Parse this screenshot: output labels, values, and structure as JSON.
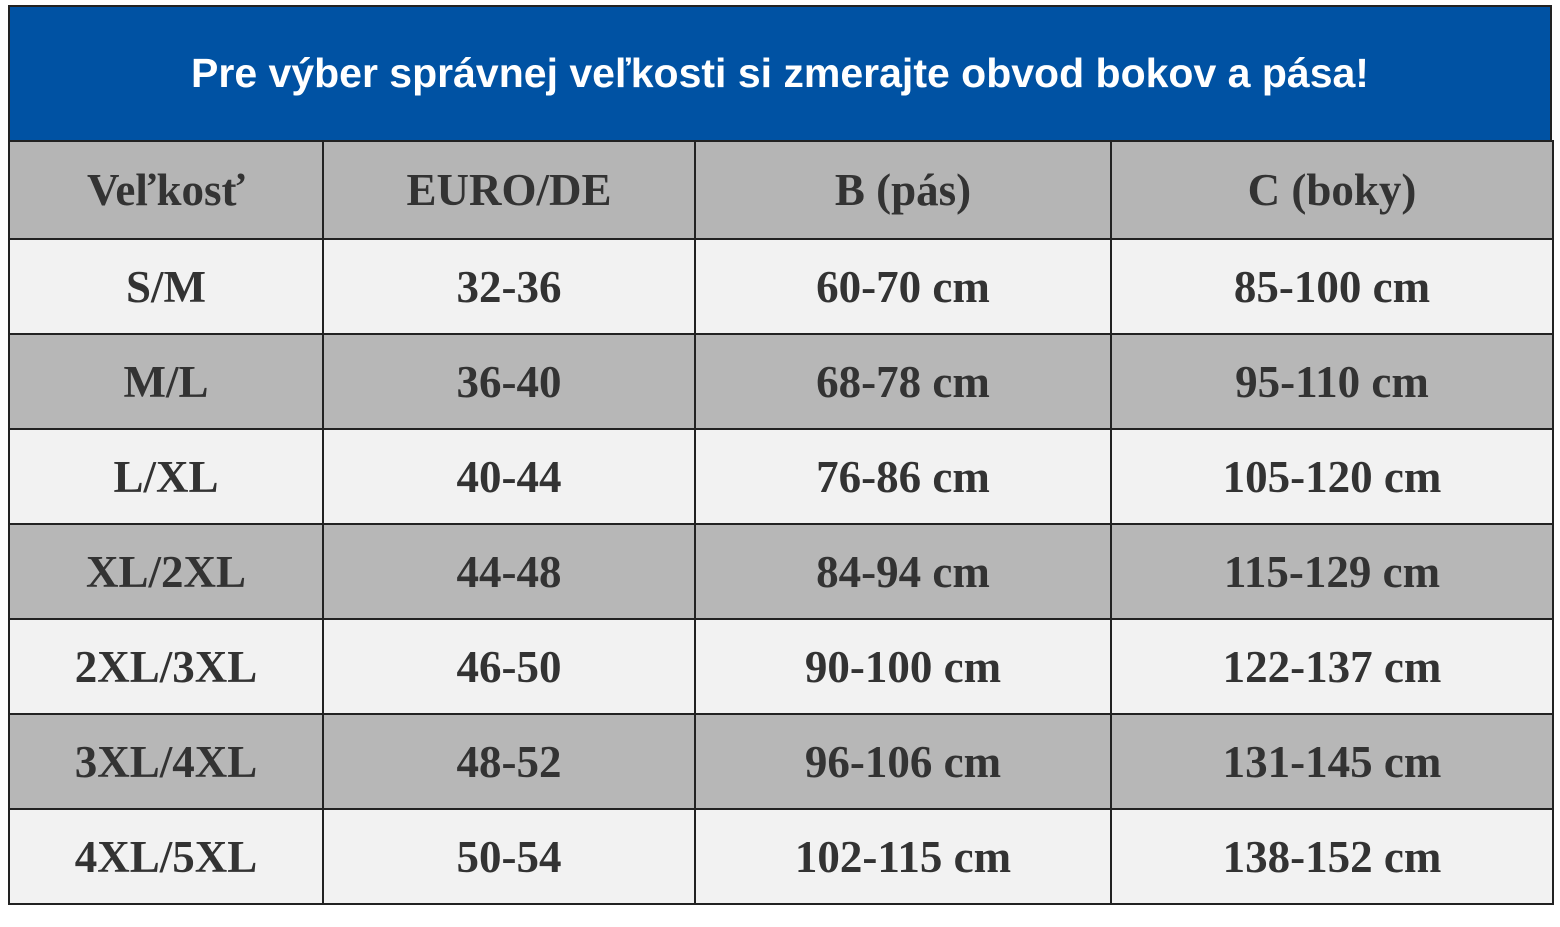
{
  "header": {
    "title": "Pre výber správnej veľkosti si zmerajte obvod bokov a pása!"
  },
  "table": {
    "columns": [
      "Veľkosť",
      "EURO/DE",
      "B (pás)",
      "C (boky)"
    ],
    "rows": [
      [
        "S/M",
        "32-36",
        "60-70 cm",
        "85-100 cm"
      ],
      [
        "M/L",
        "36-40",
        "68-78 cm",
        "95-110 cm"
      ],
      [
        "L/XL",
        "40-44",
        "76-86 cm",
        "105-120 cm"
      ],
      [
        "XL/2XL",
        "44-48",
        "84-94 cm",
        "115-129 cm"
      ],
      [
        "2XL/3XL",
        "46-50",
        "90-100 cm",
        "122-137 cm"
      ],
      [
        "3XL/4XL",
        "48-52",
        "96-106 cm",
        "131-145 cm"
      ],
      [
        "4XL/5XL",
        "50-54",
        "102-115 cm",
        "138-152 cm"
      ]
    ]
  }
}
